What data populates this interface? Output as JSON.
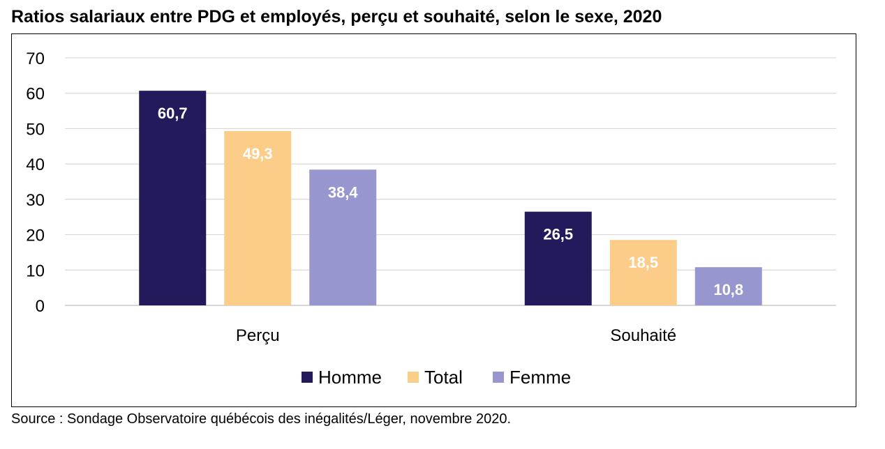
{
  "chart_data": {
    "type": "bar",
    "title": "Ratios salariaux entre PDG et employés, perçu et souhaité, selon le sexe, 2020",
    "categories": [
      "Perçu",
      "Souhaité"
    ],
    "series": [
      {
        "name": "Homme",
        "values": [
          60.7,
          26.5
        ],
        "labels": [
          "60,7",
          "26,5"
        ],
        "color": "#231a5c",
        "label_color": "#ffffff"
      },
      {
        "name": "Total",
        "values": [
          49.3,
          18.5
        ],
        "labels": [
          "49,3",
          "18,5"
        ],
        "color": "#fccd89",
        "label_color": "#ffffff"
      },
      {
        "name": "Femme",
        "values": [
          38.4,
          10.8
        ],
        "labels": [
          "38,4",
          "10,8"
        ],
        "color": "#9796cf",
        "label_color": "#ffffff"
      }
    ],
    "yticks": [
      "0",
      "10",
      "20",
      "30",
      "40",
      "50",
      "60",
      "70"
    ],
    "ylim": [
      0,
      70
    ],
    "grid": true,
    "legend_position": "bottom",
    "xlabel": "",
    "ylabel": ""
  },
  "source": "Source : Sondage Observatoire québécois des inégalités/Léger, novembre 2020."
}
